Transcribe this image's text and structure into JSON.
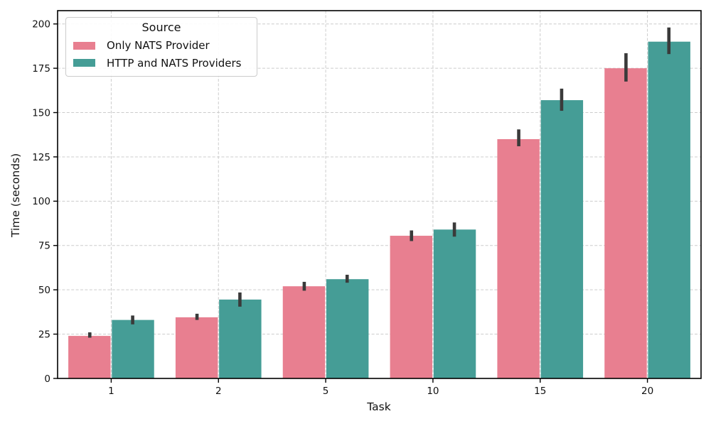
{
  "chart_data": {
    "type": "bar",
    "title": "",
    "xlabel": "Task",
    "ylabel": "Time (seconds)",
    "categories": [
      "1",
      "2",
      "5",
      "10",
      "15",
      "20"
    ],
    "series": [
      {
        "name": "Only NATS Provider",
        "color": "#e87f90",
        "values": [
          24,
          34.5,
          52,
          80.5,
          135,
          175
        ],
        "err_low": [
          23,
          33,
          49.5,
          77.5,
          131,
          167.5
        ],
        "err_high": [
          26,
          36.5,
          54.5,
          83.5,
          140.5,
          183.5
        ]
      },
      {
        "name": "HTTP and NATS Providers",
        "color": "#459d96",
        "values": [
          33,
          44.5,
          56,
          84,
          157,
          190
        ],
        "err_low": [
          30.5,
          40.5,
          54,
          80,
          151,
          183
        ],
        "err_high": [
          35.5,
          48.5,
          58.5,
          88,
          163.5,
          198
        ]
      }
    ],
    "legend": {
      "title": "Source",
      "position": "upper-left"
    },
    "ylim": [
      0,
      207.5
    ],
    "yticks": [
      0,
      25,
      50,
      75,
      100,
      125,
      150,
      175,
      200
    ],
    "grid": "both, dashed",
    "error_bar_color": "#3a3a3a",
    "background": "#ffffff"
  }
}
